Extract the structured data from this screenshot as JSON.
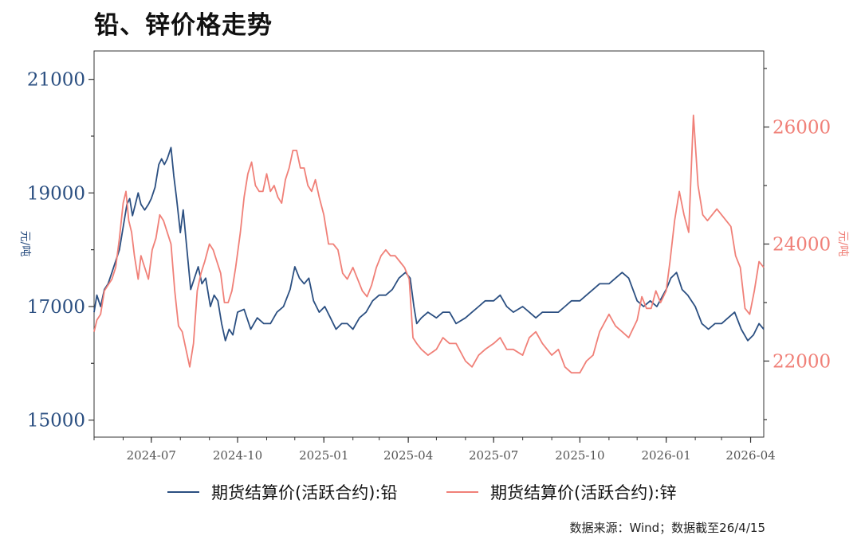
{
  "chart_data": {
    "type": "line",
    "title": "铅、锌价格走势",
    "source": "数据来源：Wind；数据截至26/4/15",
    "x_axis": {
      "type": "date",
      "range": [
        "2024-05-01",
        "2026-04-15"
      ],
      "ticks": [
        "2024-07",
        "2024-10",
        "2025-01",
        "2025-04",
        "2025-07",
        "2025-10",
        "2026-01",
        "2026-04"
      ],
      "tick_dates": [
        "2024-07-01",
        "2024-10-01",
        "2025-01-01",
        "2025-04-01",
        "2025-07-01",
        "2025-10-01",
        "2026-01-01",
        "2026-04-01"
      ]
    },
    "y_left": {
      "label": "元/吨",
      "range": [
        14700,
        21500
      ],
      "ticks": [
        15000,
        17000,
        19000,
        21000
      ],
      "color": "#2b4f81"
    },
    "y_right": {
      "label": "元/吨",
      "range": [
        20700,
        27300
      ],
      "ticks": [
        22000,
        24000,
        26000
      ],
      "color": "#f08078"
    },
    "legend_position": "bottom",
    "grid": false,
    "series": [
      {
        "name": "期货结算价(活跃合约):铅",
        "axis": "left",
        "color": "#2b4f81",
        "x": [
          "2024-05-01",
          "2024-05-04",
          "2024-05-08",
          "2024-05-12",
          "2024-05-16",
          "2024-05-20",
          "2024-05-24",
          "2024-05-28",
          "2024-06-01",
          "2024-06-05",
          "2024-06-08",
          "2024-06-11",
          "2024-06-14",
          "2024-06-17",
          "2024-06-20",
          "2024-06-24",
          "2024-06-28",
          "2024-07-01",
          "2024-07-05",
          "2024-07-09",
          "2024-07-12",
          "2024-07-15",
          "2024-07-18",
          "2024-07-22",
          "2024-07-25",
          "2024-07-28",
          "2024-08-01",
          "2024-08-04",
          "2024-08-08",
          "2024-08-12",
          "2024-08-16",
          "2024-08-20",
          "2024-08-24",
          "2024-08-28",
          "2024-09-02",
          "2024-09-06",
          "2024-09-10",
          "2024-09-14",
          "2024-09-18",
          "2024-09-22",
          "2024-09-26",
          "2024-10-01",
          "2024-10-08",
          "2024-10-15",
          "2024-10-22",
          "2024-10-29",
          "2024-11-05",
          "2024-11-12",
          "2024-11-19",
          "2024-11-26",
          "2024-12-01",
          "2024-12-06",
          "2024-12-11",
          "2024-12-16",
          "2024-12-21",
          "2024-12-27",
          "2025-01-02",
          "2025-01-08",
          "2025-01-14",
          "2025-01-20",
          "2025-01-26",
          "2025-02-01",
          "2025-02-08",
          "2025-02-15",
          "2025-02-22",
          "2025-03-01",
          "2025-03-08",
          "2025-03-15",
          "2025-03-22",
          "2025-03-29",
          "2025-04-03",
          "2025-04-07",
          "2025-04-10",
          "2025-04-15",
          "2025-04-22",
          "2025-05-01",
          "2025-05-08",
          "2025-05-15",
          "2025-05-22",
          "2025-06-01",
          "2025-06-08",
          "2025-06-15",
          "2025-06-22",
          "2025-07-01",
          "2025-07-08",
          "2025-07-15",
          "2025-07-22",
          "2025-08-01",
          "2025-08-08",
          "2025-08-15",
          "2025-08-22",
          "2025-09-01",
          "2025-09-08",
          "2025-09-15",
          "2025-09-22",
          "2025-10-01",
          "2025-10-08",
          "2025-10-15",
          "2025-10-22",
          "2025-11-01",
          "2025-11-08",
          "2025-11-15",
          "2025-11-22",
          "2025-12-01",
          "2025-12-08",
          "2025-12-15",
          "2025-12-22",
          "2026-01-01",
          "2026-01-06",
          "2026-01-12",
          "2026-01-18",
          "2026-01-24",
          "2026-02-01",
          "2026-02-08",
          "2026-02-15",
          "2026-02-22",
          "2026-03-01",
          "2026-03-08",
          "2026-03-15",
          "2026-03-22",
          "2026-03-29",
          "2026-04-04",
          "2026-04-10",
          "2026-04-15"
        ],
        "values": [
          16900,
          17200,
          17000,
          17300,
          17400,
          17600,
          17800,
          18000,
          18400,
          18800,
          18900,
          18600,
          18800,
          19000,
          18800,
          18700,
          18800,
          18900,
          19100,
          19500,
          19600,
          19500,
          19600,
          19800,
          19300,
          18900,
          18300,
          18700,
          18000,
          17300,
          17500,
          17700,
          17400,
          17500,
          17000,
          17200,
          17100,
          16700,
          16400,
          16600,
          16500,
          16900,
          16950,
          16600,
          16800,
          16700,
          16700,
          16900,
          17000,
          17300,
          17700,
          17500,
          17400,
          17500,
          17100,
          16900,
          17000,
          16800,
          16600,
          16700,
          16700,
          16600,
          16800,
          16900,
          17100,
          17200,
          17200,
          17300,
          17500,
          17600,
          17500,
          17000,
          16700,
          16800,
          16900,
          16800,
          16900,
          16900,
          16700,
          16800,
          16900,
          17000,
          17100,
          17100,
          17200,
          17000,
          16900,
          17000,
          16900,
          16800,
          16900,
          16900,
          16900,
          17000,
          17100,
          17100,
          17200,
          17300,
          17400,
          17400,
          17500,
          17600,
          17500,
          17100,
          17000,
          17100,
          17000,
          17300,
          17500,
          17600,
          17300,
          17200,
          17000,
          16700,
          16600,
          16700,
          16700,
          16800,
          16900,
          16600,
          16400,
          16500,
          16700,
          16600
        ]
      },
      {
        "name": "期货结算价(活跃合约):锌",
        "axis": "right",
        "color": "#f08078",
        "x": [
          "2024-05-01",
          "2024-05-04",
          "2024-05-08",
          "2024-05-12",
          "2024-05-16",
          "2024-05-20",
          "2024-05-24",
          "2024-05-28",
          "2024-06-01",
          "2024-06-04",
          "2024-06-07",
          "2024-06-10",
          "2024-06-13",
          "2024-06-17",
          "2024-06-20",
          "2024-06-24",
          "2024-06-28",
          "2024-07-02",
          "2024-07-06",
          "2024-07-10",
          "2024-07-14",
          "2024-07-18",
          "2024-07-22",
          "2024-07-26",
          "2024-07-30",
          "2024-08-03",
          "2024-08-07",
          "2024-08-11",
          "2024-08-15",
          "2024-08-19",
          "2024-08-23",
          "2024-08-27",
          "2024-09-01",
          "2024-09-05",
          "2024-09-09",
          "2024-09-13",
          "2024-09-17",
          "2024-09-21",
          "2024-09-25",
          "2024-09-29",
          "2024-10-04",
          "2024-10-08",
          "2024-10-12",
          "2024-10-16",
          "2024-10-20",
          "2024-10-24",
          "2024-10-28",
          "2024-11-01",
          "2024-11-05",
          "2024-11-09",
          "2024-11-13",
          "2024-11-17",
          "2024-11-21",
          "2024-11-25",
          "2024-11-29",
          "2024-12-03",
          "2024-12-07",
          "2024-12-11",
          "2024-12-15",
          "2024-12-19",
          "2024-12-23",
          "2024-12-27",
          "2025-01-01",
          "2025-01-06",
          "2025-01-11",
          "2025-01-16",
          "2025-01-21",
          "2025-01-26",
          "2025-02-01",
          "2025-02-06",
          "2025-02-11",
          "2025-02-16",
          "2025-02-21",
          "2025-02-26",
          "2025-03-03",
          "2025-03-08",
          "2025-03-13",
          "2025-03-18",
          "2025-03-23",
          "2025-03-28",
          "2025-04-02",
          "2025-04-06",
          "2025-04-10",
          "2025-04-15",
          "2025-04-22",
          "2025-05-01",
          "2025-05-08",
          "2025-05-15",
          "2025-05-22",
          "2025-06-01",
          "2025-06-08",
          "2025-06-15",
          "2025-06-22",
          "2025-07-01",
          "2025-07-08",
          "2025-07-15",
          "2025-07-22",
          "2025-08-01",
          "2025-08-08",
          "2025-08-15",
          "2025-08-22",
          "2025-09-01",
          "2025-09-08",
          "2025-09-15",
          "2025-09-22",
          "2025-10-01",
          "2025-10-08",
          "2025-10-15",
          "2025-10-22",
          "2025-11-01",
          "2025-11-08",
          "2025-11-15",
          "2025-11-22",
          "2025-12-01",
          "2025-12-06",
          "2025-12-11",
          "2025-12-16",
          "2025-12-21",
          "2025-12-26",
          "2026-01-01",
          "2026-01-05",
          "2026-01-10",
          "2026-01-15",
          "2026-01-20",
          "2026-01-25",
          "2026-01-30",
          "2026-02-04",
          "2026-02-09",
          "2026-02-14",
          "2026-02-19",
          "2026-02-24",
          "2026-03-01",
          "2026-03-06",
          "2026-03-11",
          "2026-03-16",
          "2026-03-21",
          "2026-03-26",
          "2026-03-31",
          "2026-04-05",
          "2026-04-10",
          "2026-04-15"
        ],
        "values": [
          22500,
          22700,
          22800,
          23200,
          23300,
          23400,
          23600,
          24100,
          24700,
          24900,
          24400,
          24200,
          23800,
          23400,
          23800,
          23600,
          23400,
          23900,
          24100,
          24500,
          24400,
          24200,
          24000,
          23200,
          22600,
          22500,
          22200,
          21900,
          22300,
          23200,
          23500,
          23700,
          24000,
          23900,
          23700,
          23500,
          23000,
          23000,
          23200,
          23600,
          24200,
          24800,
          25200,
          25400,
          25000,
          24900,
          24900,
          25200,
          24900,
          25000,
          24800,
          24700,
          25100,
          25300,
          25600,
          25600,
          25300,
          25300,
          25000,
          24900,
          25100,
          24800,
          24500,
          24000,
          24000,
          23900,
          23500,
          23400,
          23600,
          23400,
          23200,
          23100,
          23300,
          23600,
          23800,
          23900,
          23800,
          23800,
          23700,
          23600,
          23400,
          22400,
          22300,
          22200,
          22100,
          22200,
          22400,
          22300,
          22300,
          22000,
          21900,
          22100,
          22200,
          22300,
          22400,
          22200,
          22200,
          22100,
          22400,
          22500,
          22300,
          22100,
          22200,
          21900,
          21800,
          21800,
          22000,
          22100,
          22500,
          22800,
          22600,
          22500,
          22400,
          22700,
          23100,
          22900,
          22900,
          23200,
          23000,
          23200,
          23700,
          24400,
          24900,
          24500,
          24200,
          26200,
          25000,
          24500,
          24400,
          24500,
          24600,
          24500,
          24400,
          24300,
          23800,
          23600,
          22900,
          22800,
          23200,
          23700,
          23600
        ]
      }
    ]
  }
}
